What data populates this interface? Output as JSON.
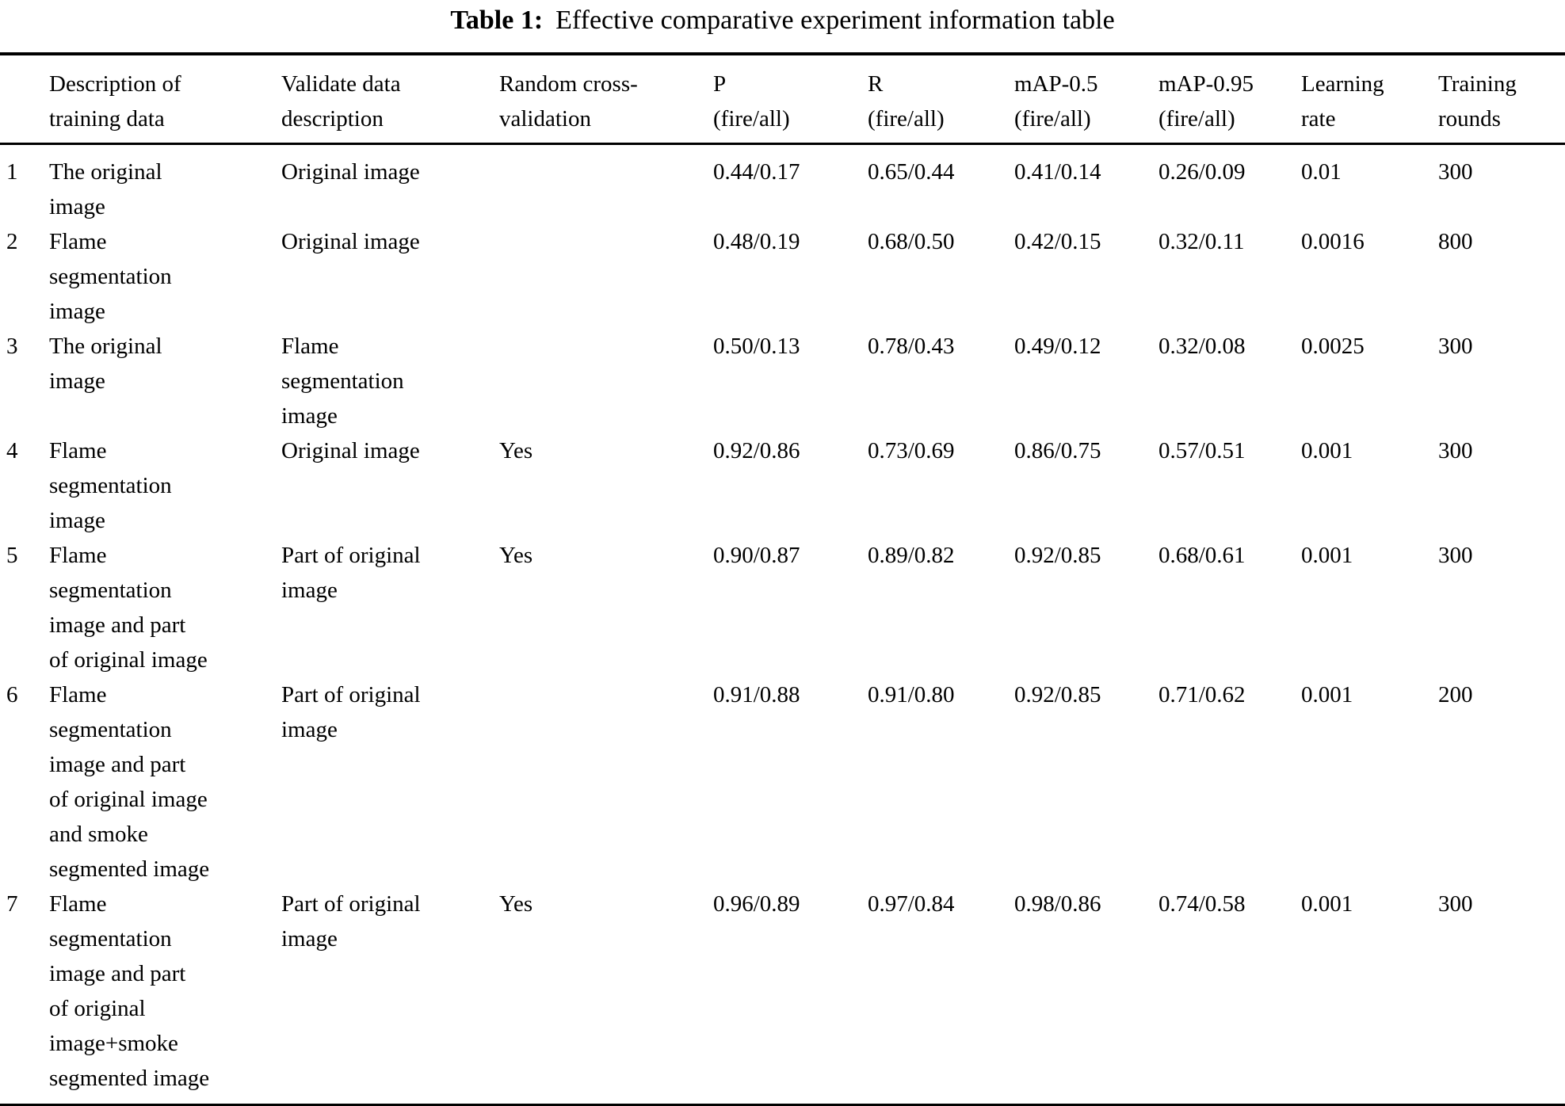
{
  "caption": {
    "label": "Table 1:",
    "text": "Effective comparative experiment information table"
  },
  "table": {
    "columns": [
      "",
      "Description of\ntraining data",
      "Validate data\ndescription",
      "Random cross-\nvalidation",
      "P\n(fire/all)",
      "R\n(fire/all)",
      "mAP-0.5\n(fire/all)",
      "mAP-0.95\n(fire/all)",
      "Learning\nrate",
      "Training\nrounds"
    ],
    "column_keys": [
      "row-number",
      "training-data-description",
      "validate-data-description",
      "random-cross-validation",
      "p-fire-all",
      "r-fire-all",
      "map-0-5-fire-all",
      "map-0-95-fire-all",
      "learning-rate",
      "training-rounds"
    ],
    "rows": [
      [
        "1",
        "The original\nimage",
        "Original image",
        "",
        "0.44/0.17",
        "0.65/0.44",
        "0.41/0.14",
        "0.26/0.09",
        "0.01",
        "300"
      ],
      [
        "2",
        "Flame\nsegmentation\nimage",
        "Original image",
        "",
        "0.48/0.19",
        "0.68/0.50",
        "0.42/0.15",
        "0.32/0.11",
        "0.0016",
        "800"
      ],
      [
        "3",
        "The original\nimage",
        "Flame\nsegmentation\nimage",
        "",
        "0.50/0.13",
        "0.78/0.43",
        "0.49/0.12",
        "0.32/0.08",
        "0.0025",
        "300"
      ],
      [
        "4",
        "Flame\nsegmentation\nimage",
        "Original image",
        "Yes",
        "0.92/0.86",
        "0.73/0.69",
        "0.86/0.75",
        "0.57/0.51",
        "0.001",
        "300"
      ],
      [
        "5",
        "Flame\nsegmentation\nimage and part\nof original image",
        "Part of original\nimage",
        "Yes",
        "0.90/0.87",
        "0.89/0.82",
        "0.92/0.85",
        "0.68/0.61",
        "0.001",
        "300"
      ],
      [
        "6",
        "Flame\nsegmentation\nimage and part\nof original image\nand smoke\nsegmented image",
        "Part of original\nimage",
        "",
        "0.91/0.88",
        "0.91/0.80",
        "0.92/0.85",
        "0.71/0.62",
        "0.001",
        "200"
      ],
      [
        "7",
        "Flame\nsegmentation\nimage and part\nof original\nimage+smoke\nsegmented image",
        "Part of original\nimage",
        "Yes",
        "0.96/0.89",
        "0.97/0.84",
        "0.98/0.86",
        "0.74/0.58",
        "0.001",
        "300"
      ]
    ]
  }
}
